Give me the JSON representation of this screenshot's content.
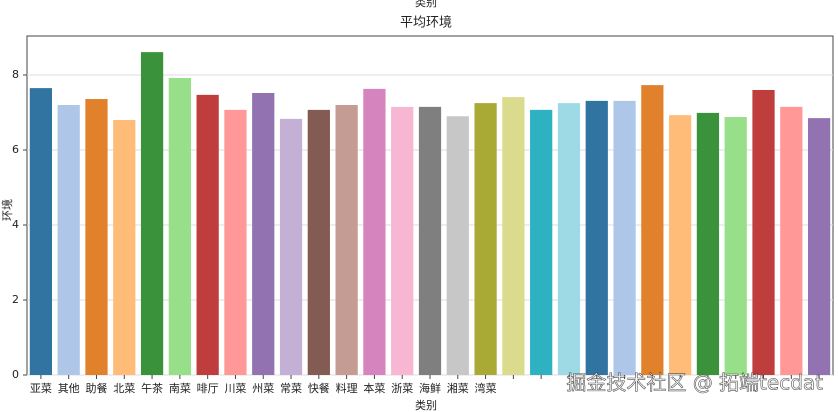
{
  "chart_data": {
    "type": "bar",
    "super_title": "类别",
    "title": "平均环境",
    "x_label": "类别",
    "y_label": "环境",
    "annotations": [
      "掘金技术社区 @ 拓端tecdat"
    ],
    "categories": [
      "亚菜",
      "其他",
      "助餐",
      "北菜",
      "午茶",
      "南菜",
      "啡厅",
      "川菜",
      "州菜",
      "常菜",
      "快餐",
      "料理",
      "本菜",
      "浙菜",
      "海鲜",
      "湘菜",
      "湾菜",
      null,
      null,
      null,
      null,
      null,
      null,
      null,
      null,
      null,
      null,
      null,
      null
    ],
    "values": [
      7.65,
      7.2,
      7.36,
      6.8,
      8.61,
      7.92,
      7.47,
      7.07,
      7.52,
      6.83,
      7.07,
      7.2,
      7.63,
      7.15,
      7.15,
      6.9,
      7.25,
      7.41,
      7.07,
      7.25,
      7.31,
      7.31,
      7.73,
      6.93,
      6.99,
      6.88,
      7.6,
      7.15,
      6.85
    ],
    "colors": [
      "#3274a1",
      "#aec7e8",
      "#e1812c",
      "#ffbb78",
      "#3a923a",
      "#98df8a",
      "#c03d3e",
      "#ff9896",
      "#9372b2",
      "#c5b0d5",
      "#845b53",
      "#c49c94",
      "#d684bd",
      "#f7b6d2",
      "#7f7f7f",
      "#c7c7c7",
      "#a9aa35",
      "#dbdb8d",
      "#2eb2c2",
      "#9edae5",
      "#3274a1",
      "#aec7e8",
      "#e1812c",
      "#ffbb78",
      "#3a923a",
      "#98df8a",
      "#c03d3e",
      "#ff9896",
      "#9372b2"
    ],
    "ylim": [
      0,
      9.04
    ],
    "yticks": [
      0,
      2,
      4,
      6,
      8
    ],
    "grid": true
  }
}
